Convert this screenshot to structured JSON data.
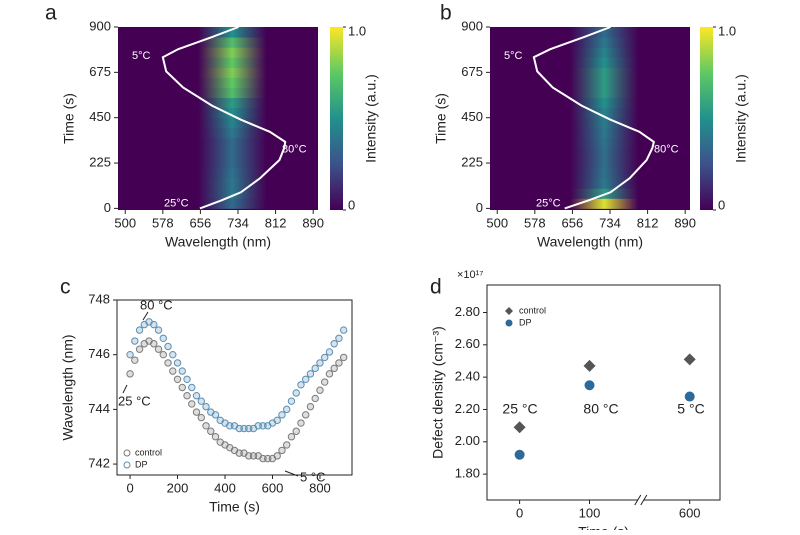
{
  "chart_data": [
    {
      "type": "heatmap",
      "label": "a",
      "xlabel": "Wavelength (nm)",
      "ylabel": "Time (s)",
      "xlim": [
        485,
        900
      ],
      "ylim": [
        -8,
        900
      ],
      "xticks": [
        500,
        578,
        656,
        734,
        812,
        890
      ],
      "yticks": [
        0,
        225,
        450,
        675,
        900
      ],
      "rows": [
        0,
        50,
        100,
        150,
        200,
        250,
        300,
        350,
        400,
        450,
        500,
        550,
        600,
        650,
        700,
        750,
        800,
        850
      ],
      "row_intensity": [
        0.35,
        0.4,
        0.4,
        0.38,
        0.35,
        0.35,
        0.35,
        0.4,
        0.45,
        0.5,
        0.55,
        0.7,
        0.75,
        0.8,
        0.75,
        0.8,
        0.7,
        0.5
      ],
      "peak_wavelength": 722,
      "colorbar_label": "Intensity (a.u.)",
      "colorbar_ticks": [
        {
          "value": 1,
          "label": "1.0"
        },
        0
      ],
      "temperature_curve": {
        "color": "#ffffff",
        "x": [
          655,
          700,
          740,
          780,
          820,
          830,
          832,
          800,
          740,
          680,
          620,
          585,
          578,
          610,
          680,
          735
        ],
        "y": [
          0,
          40,
          80,
          150,
          240,
          300,
          330,
          380,
          440,
          510,
          600,
          680,
          750,
          790,
          850,
          900
        ]
      },
      "annotations": [
        "5°C",
        "80°C",
        "25°C"
      ]
    },
    {
      "type": "heatmap",
      "label": "b",
      "xlabel": "Wavelength (nm)",
      "ylabel": "Time (s)",
      "xlim": [
        485,
        900
      ],
      "ylim": [
        -8,
        900
      ],
      "xticks": [
        500,
        578,
        656,
        734,
        812,
        890
      ],
      "yticks": [
        0,
        225,
        450,
        675,
        900
      ],
      "rows": [
        0,
        50,
        100,
        150,
        200,
        250,
        300,
        350,
        400,
        450,
        500,
        550,
        600,
        650,
        700,
        750,
        800,
        850
      ],
      "row_intensity": [
        0.95,
        0.55,
        0.4,
        0.38,
        0.36,
        0.36,
        0.38,
        0.4,
        0.42,
        0.45,
        0.5,
        0.55,
        0.55,
        0.55,
        0.5,
        0.45,
        0.4,
        0.35
      ],
      "peak_wavelength": 722,
      "colorbar_label": "Intensity (a.u.)",
      "colorbar_ticks": [
        {
          "value": 1,
          "label": "1.0"
        },
        0
      ],
      "temperature_curve": {
        "color": "#ffffff",
        "x": [
          640,
          690,
          735,
          775,
          810,
          822,
          825,
          795,
          735,
          675,
          615,
          583,
          576,
          610,
          680,
          735
        ],
        "y": [
          0,
          40,
          80,
          150,
          240,
          300,
          330,
          380,
          440,
          510,
          600,
          680,
          750,
          790,
          850,
          900
        ]
      },
      "annotations": [
        "5°C",
        "80°C",
        "25°C"
      ]
    },
    {
      "type": "scatter",
      "label": "c",
      "xlabel": "Time (s)",
      "ylabel": "Wavelength (nm)",
      "xlim": [
        -55,
        935
      ],
      "ylim": [
        741.6,
        748
      ],
      "xticks": [
        0,
        200,
        400,
        600,
        800
      ],
      "yticks": [
        742,
        744,
        746,
        748
      ],
      "x": [
        0,
        20,
        40,
        60,
        80,
        100,
        120,
        140,
        160,
        180,
        200,
        220,
        240,
        260,
        280,
        300,
        320,
        340,
        360,
        380,
        400,
        420,
        440,
        460,
        480,
        500,
        520,
        540,
        560,
        580,
        600,
        620,
        640,
        660,
        680,
        700,
        720,
        740,
        760,
        780,
        800,
        820,
        840,
        860,
        880,
        900
      ],
      "series": [
        {
          "name": "control",
          "color": "#7a7a7a",
          "values": [
            745.3,
            745.8,
            746.2,
            746.4,
            746.5,
            746.4,
            746.2,
            746.0,
            745.7,
            745.4,
            745.1,
            744.8,
            744.5,
            744.2,
            743.9,
            743.7,
            743.4,
            743.2,
            743.0,
            742.8,
            742.7,
            742.6,
            742.5,
            742.4,
            742.4,
            742.3,
            742.3,
            742.3,
            742.2,
            742.2,
            742.2,
            742.3,
            742.5,
            742.7,
            743.0,
            743.2,
            743.5,
            743.8,
            744.1,
            744.4,
            744.7,
            745.0,
            745.3,
            745.5,
            745.7,
            745.9
          ]
        },
        {
          "name": "DP",
          "color": "#5b8fb3",
          "values": [
            746.0,
            746.5,
            746.9,
            747.1,
            747.2,
            747.1,
            746.9,
            746.6,
            746.3,
            746.0,
            745.7,
            745.4,
            745.1,
            744.8,
            744.5,
            744.3,
            744.1,
            743.9,
            743.8,
            743.6,
            743.5,
            743.4,
            743.4,
            743.3,
            743.3,
            743.3,
            743.3,
            743.4,
            743.4,
            743.4,
            743.5,
            743.6,
            743.8,
            744.0,
            744.3,
            744.6,
            744.9,
            745.1,
            745.3,
            745.5,
            745.7,
            745.9,
            746.1,
            746.4,
            746.6,
            746.9
          ]
        }
      ],
      "annotations": [
        "80 °C",
        "25 °C",
        "5 °C"
      ]
    },
    {
      "type": "category-scatter",
      "label": "d",
      "xlabel": "Time (s)",
      "ylabel": "Defect density (cm⁻³)",
      "multiplier": "×10¹⁷",
      "categories": [
        "0",
        "100",
        "600"
      ],
      "ylim": [
        1.64,
        2.97
      ],
      "yticks": [
        {
          "value": 1.8,
          "label": "1.80"
        },
        {
          "value": 2.0,
          "label": "2.00"
        },
        {
          "value": 2.2,
          "label": "2.20"
        },
        {
          "value": 2.4,
          "label": "2.40"
        },
        {
          "value": 2.6,
          "label": "2.60"
        },
        {
          "value": 2.8,
          "label": "2.80"
        }
      ],
      "series": [
        {
          "name": "control",
          "color": "#555555",
          "marker": "diamond",
          "values": [
            2.09,
            2.47,
            2.51
          ]
        },
        {
          "name": "DP",
          "color": "#2e6a99",
          "marker": "circle",
          "values": [
            1.92,
            2.35,
            2.28
          ]
        }
      ],
      "annotations": [
        "25 °C",
        "80 °C",
        "5 °C"
      ]
    }
  ]
}
